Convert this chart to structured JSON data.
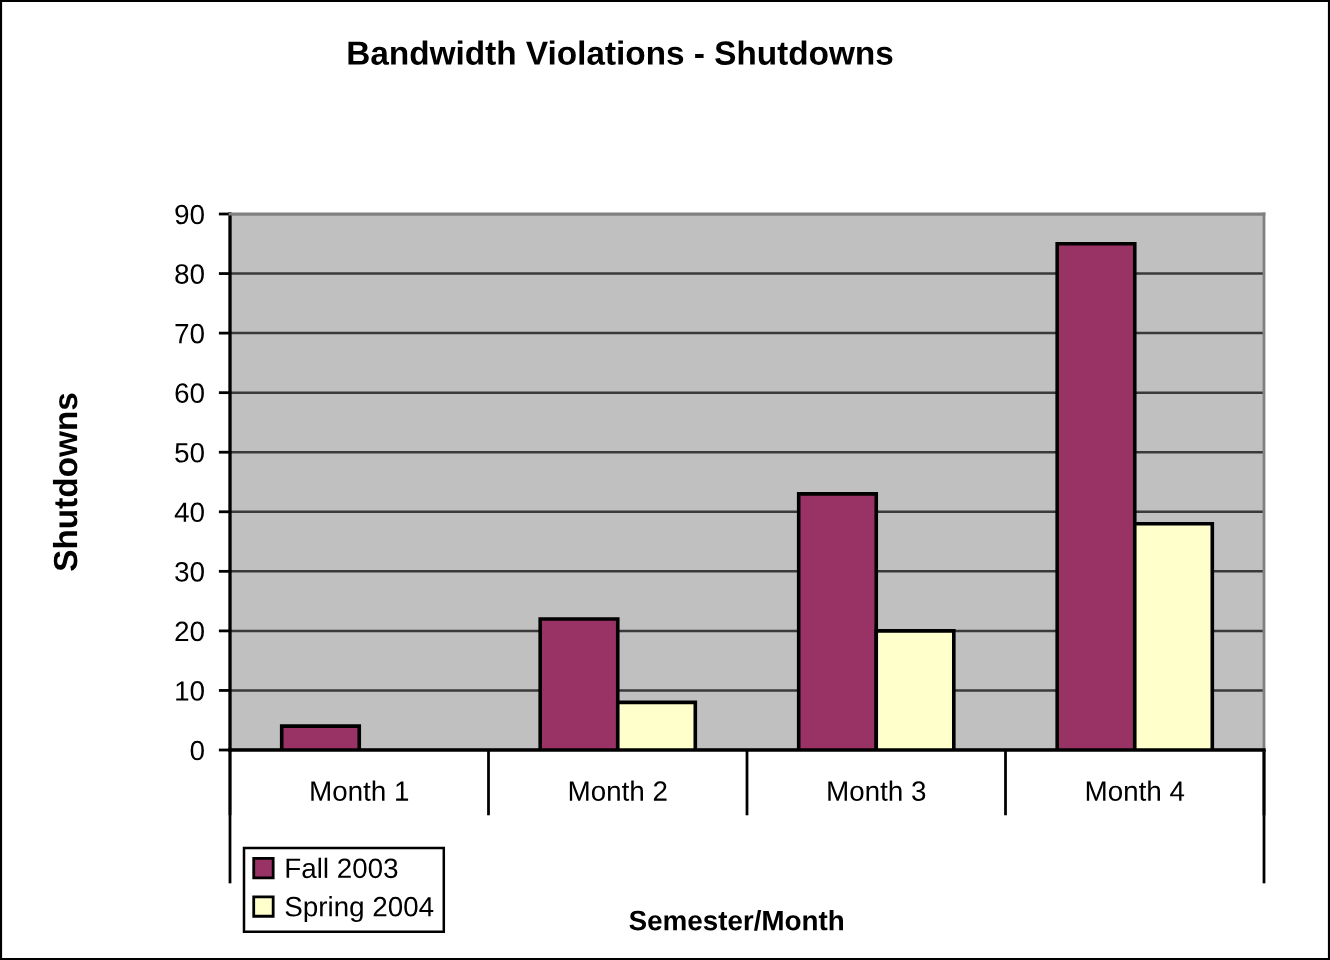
{
  "chart_data": {
    "type": "bar",
    "title": "Bandwidth Violations - Shutdowns",
    "xlabel": "Semester/Month",
    "ylabel": "Shutdowns",
    "categories": [
      "Month 1",
      "Month 2",
      "Month 3",
      "Month 4"
    ],
    "series": [
      {
        "name": "Fall 2003",
        "color": "#993366",
        "values": [
          4,
          22,
          43,
          85
        ]
      },
      {
        "name": "Spring 2004",
        "color": "#ffffcc",
        "values": [
          null,
          8,
          20,
          38
        ]
      }
    ],
    "ylim": [
      0,
      90
    ],
    "yticks": [
      0,
      10,
      20,
      30,
      40,
      50,
      60,
      70,
      80,
      90
    ],
    "grid": "y",
    "legend": "bottom left"
  }
}
